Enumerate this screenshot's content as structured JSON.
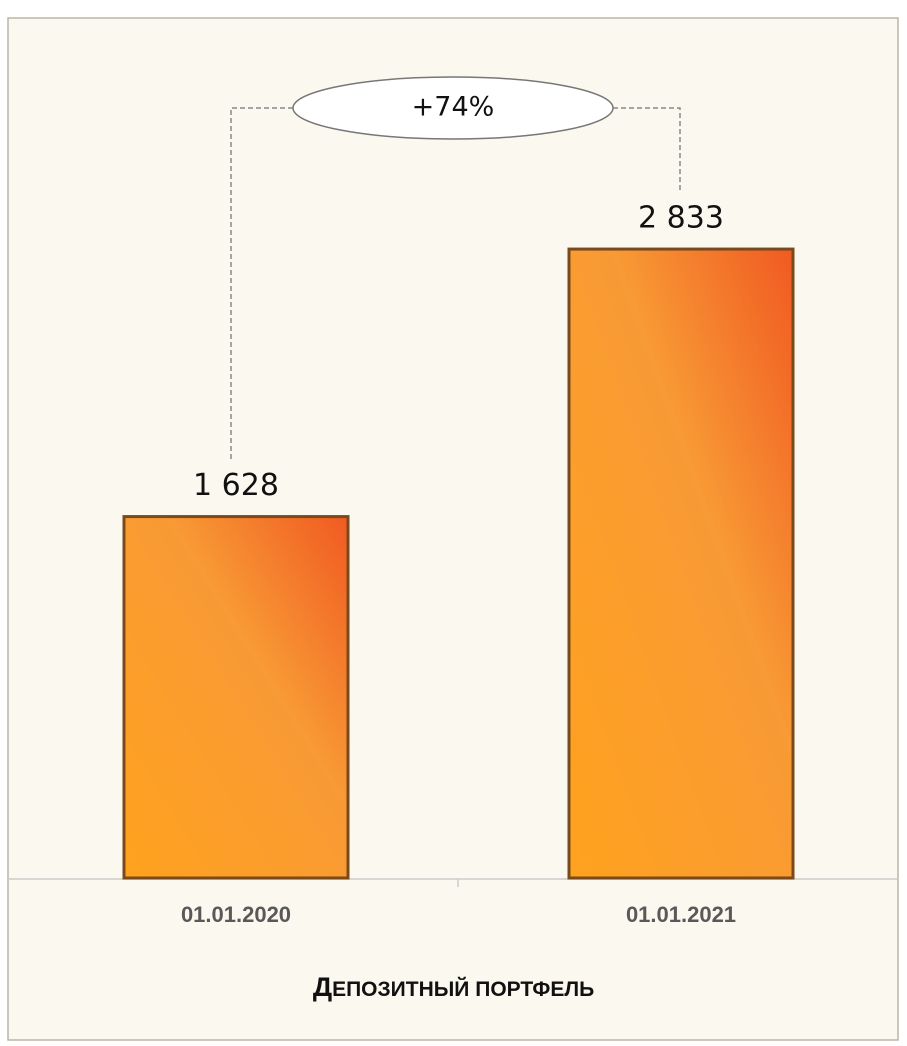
{
  "chart_data": {
    "type": "bar",
    "title": "ДЕПОЗИТНЫЙ ПОРТФЕЛЬ",
    "categories": [
      "01.01.2020",
      "01.01.2021"
    ],
    "values": [
      1628,
      2833
    ],
    "value_labels": [
      "1 628",
      "2 833"
    ],
    "annotation": "+74%",
    "color": "#f7941d",
    "ylim": [
      0,
      3500
    ]
  }
}
